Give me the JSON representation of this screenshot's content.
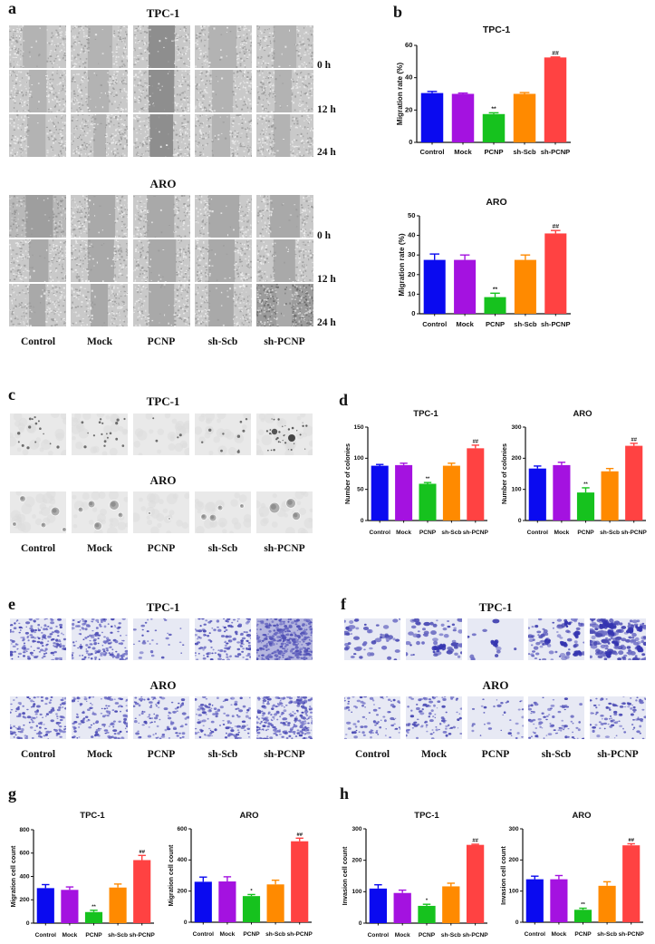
{
  "figure": {
    "groups": [
      "Control",
      "Mock",
      "PCNP",
      "sh-Scb",
      "sh-PCNP"
    ],
    "cell_lines": [
      "TPC-1",
      "ARO"
    ],
    "panels": {
      "a": {
        "letter": "a",
        "assay": "wound healing",
        "titles": [
          "TPC-1",
          "ARO"
        ],
        "timepoints": [
          "0 h",
          "12 h",
          "24 h"
        ]
      },
      "b": {
        "letter": "b"
      },
      "c": {
        "letter": "c",
        "assay": "colony formation",
        "titles": [
          "TPC-1",
          "ARO"
        ]
      },
      "d": {
        "letter": "d"
      },
      "e": {
        "letter": "e",
        "assay": "transwell migration",
        "titles": [
          "TPC-1",
          "ARO"
        ]
      },
      "f": {
        "letter": "f",
        "assay": "transwell invasion",
        "titles": [
          "TPC-1",
          "ARO"
        ]
      },
      "g": {
        "letter": "g"
      },
      "h": {
        "letter": "h"
      }
    },
    "colors": {
      "Control": "#0a0af0",
      "Mock": "#a412e0",
      "PCNP": "#16c21e",
      "sh-Scb": "#ff8a00",
      "sh-PCNP": "#ff4242"
    }
  },
  "chart_data": [
    {
      "id": "b-tpc1",
      "panel": "b",
      "type": "bar",
      "title": "TPC-1",
      "xlabel": "",
      "ylabel": "Migration rate (%)",
      "categories": [
        "Control",
        "Mock",
        "PCNP",
        "sh-Scb",
        "sh-PCNP"
      ],
      "values": [
        30.5,
        30,
        17.5,
        30,
        52.5
      ],
      "error_top": [
        31.5,
        30.5,
        18.3,
        30.8,
        52.8
      ],
      "significance": [
        "",
        "",
        "**",
        "",
        "##"
      ],
      "ylim": [
        0,
        60
      ],
      "yticks": [
        0,
        20,
        40,
        60
      ],
      "grid": false,
      "legend": "none"
    },
    {
      "id": "b-aro",
      "panel": "b",
      "type": "bar",
      "title": "ARO",
      "xlabel": "",
      "ylabel": "Migration rate (%)",
      "categories": [
        "Control",
        "Mock",
        "PCNP",
        "sh-Scb",
        "sh-PCNP"
      ],
      "values": [
        27.5,
        27.5,
        8.5,
        27.5,
        41
      ],
      "error_top": [
        30.5,
        30,
        10.5,
        30,
        42.5
      ],
      "significance": [
        "",
        "",
        "**",
        "",
        "##"
      ],
      "ylim": [
        0,
        50
      ],
      "yticks": [
        0,
        10,
        20,
        30,
        40,
        50
      ],
      "grid": false,
      "legend": "none"
    },
    {
      "id": "d-tpc1",
      "panel": "d",
      "type": "bar",
      "title": "TPC-1",
      "xlabel": "",
      "ylabel": "Number of colonies",
      "categories": [
        "Control",
        "Mock",
        "PCNP",
        "sh-Scb",
        "sh-PCNP"
      ],
      "values": [
        88,
        89,
        59,
        88,
        116
      ],
      "error_top": [
        90,
        92,
        61,
        92,
        121
      ],
      "significance": [
        "",
        "",
        "**",
        "",
        "##"
      ],
      "ylim": [
        0,
        150
      ],
      "yticks": [
        0,
        50,
        100,
        150
      ],
      "grid": false,
      "legend": "none"
    },
    {
      "id": "d-aro",
      "panel": "d",
      "type": "bar",
      "title": "ARO",
      "xlabel": "",
      "ylabel": "Number of colonies",
      "categories": [
        "Control",
        "Mock",
        "PCNP",
        "sh-Scb",
        "sh-PCNP"
      ],
      "values": [
        167,
        178,
        90,
        158,
        240
      ],
      "error_top": [
        175,
        187,
        105,
        167,
        248
      ],
      "significance": [
        "",
        "",
        "**",
        "",
        "##"
      ],
      "ylim": [
        0,
        300
      ],
      "yticks": [
        0,
        100,
        200,
        300
      ],
      "grid": false,
      "legend": "none"
    },
    {
      "id": "g-tpc1",
      "panel": "g",
      "type": "bar",
      "title": "TPC-1",
      "xlabel": "",
      "ylabel": "Migration cell count",
      "categories": [
        "Control",
        "Mock",
        "PCNP",
        "sh-Scb",
        "sh-PCNP"
      ],
      "values": [
        300,
        285,
        95,
        305,
        540
      ],
      "error_top": [
        330,
        310,
        110,
        335,
        580
      ],
      "significance": [
        "",
        "",
        "**",
        "",
        "##"
      ],
      "ylim": [
        0,
        800
      ],
      "yticks": [
        0,
        200,
        400,
        600,
        800
      ],
      "grid": false,
      "legend": "none"
    },
    {
      "id": "g-aro",
      "panel": "g",
      "type": "bar",
      "title": "ARO",
      "xlabel": "",
      "ylabel": "Migration cell count",
      "categories": [
        "Control",
        "Mock",
        "PCNP",
        "sh-Scb",
        "sh-PCNP"
      ],
      "values": [
        260,
        262,
        168,
        243,
        520
      ],
      "error_top": [
        290,
        292,
        178,
        270,
        540
      ],
      "significance": [
        "",
        "",
        "*",
        "",
        "##"
      ],
      "ylim": [
        0,
        600
      ],
      "yticks": [
        0,
        200,
        400,
        600
      ],
      "grid": false,
      "legend": "none"
    },
    {
      "id": "h-tpc1",
      "panel": "h",
      "type": "bar",
      "title": "TPC-1",
      "xlabel": "",
      "ylabel": "Invasion cell count",
      "categories": [
        "Control",
        "Mock",
        "PCNP",
        "sh-Scb",
        "sh-PCNP"
      ],
      "values": [
        110,
        96,
        55,
        117,
        249
      ],
      "error_top": [
        122,
        105,
        60,
        127,
        251
      ],
      "significance": [
        "",
        "",
        "*",
        "",
        "##"
      ],
      "ylim": [
        0,
        300
      ],
      "yticks": [
        0,
        100,
        200,
        300
      ],
      "grid": false,
      "legend": "none"
    },
    {
      "id": "h-aro",
      "panel": "h",
      "type": "bar",
      "title": "ARO",
      "xlabel": "",
      "ylabel": "Invasion cell count",
      "categories": [
        "Control",
        "Mock",
        "PCNP",
        "sh-Scb",
        "sh-PCNP"
      ],
      "values": [
        138,
        138,
        40,
        117,
        247
      ],
      "error_top": [
        148,
        150,
        45,
        130,
        252
      ],
      "significance": [
        "",
        "",
        "**",
        "",
        "##"
      ],
      "ylim": [
        0,
        300
      ],
      "yticks": [
        0,
        100,
        200,
        300
      ],
      "grid": false,
      "legend": "none"
    }
  ]
}
